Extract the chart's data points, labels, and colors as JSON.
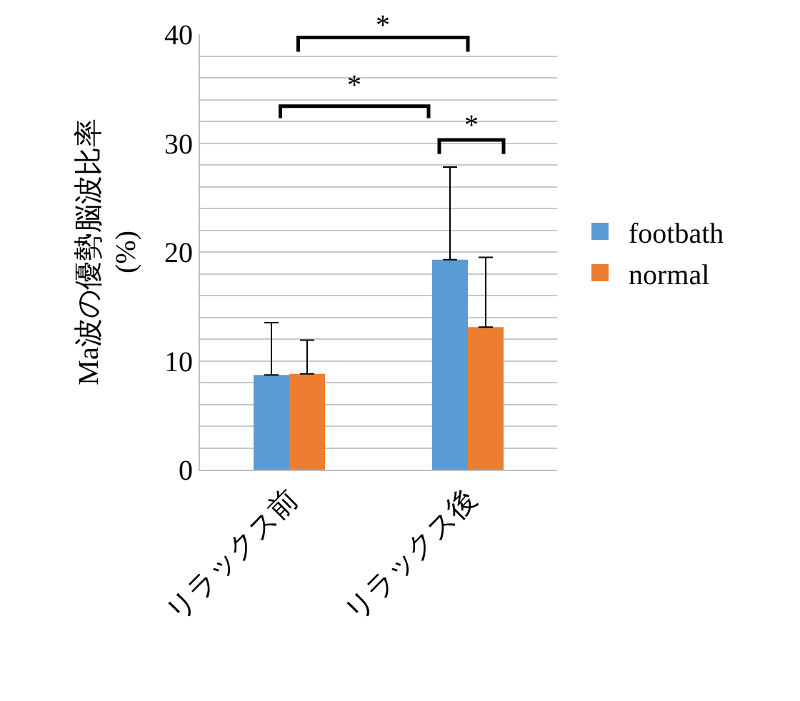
{
  "chart_data": {
    "type": "bar",
    "ylabel": "Ma波の優勢脳波比率\n(%)",
    "categories": [
      "リラックス前",
      "リラックス後"
    ],
    "series": [
      {
        "name": "footbath",
        "color": "#5b9bd5",
        "values": [
          8.7,
          19.3
        ],
        "errors": [
          [
            8.7,
            13.5
          ],
          [
            19.3,
            27.8
          ]
        ]
      },
      {
        "name": "normal",
        "color": "#ed7d31",
        "values": [
          8.8,
          13.1
        ],
        "errors": [
          [
            8.8,
            11.9
          ],
          [
            13.1,
            19.5
          ]
        ]
      }
    ],
    "ylim": [
      0,
      40
    ],
    "yticks": [
      0,
      {
        "value": 2,
        "label": null
      },
      {
        "value": 4,
        "label": null
      },
      {
        "value": 6,
        "label": null
      },
      {
        "value": 8,
        "label": null
      },
      10,
      {
        "value": 12,
        "label": null
      },
      {
        "value": 14,
        "label": null
      },
      {
        "value": 16,
        "label": null
      },
      {
        "value": 18,
        "label": null
      },
      20,
      {
        "value": 22,
        "label": null
      },
      {
        "value": 24,
        "label": null
      },
      {
        "value": 26,
        "label": null
      },
      {
        "value": 28,
        "label": null
      },
      30,
      {
        "value": 32,
        "label": null
      },
      {
        "value": 34,
        "label": null
      },
      {
        "value": 36,
        "label": null
      },
      {
        "value": 38,
        "label": null
      },
      40
    ],
    "grid": "y",
    "legend": "right",
    "annotations": [
      "*",
      "*",
      "*"
    ]
  }
}
